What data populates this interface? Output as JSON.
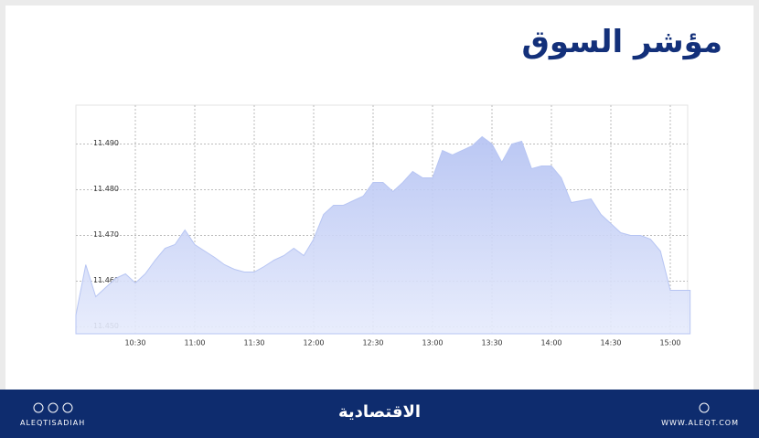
{
  "title": "مؤشر السوق",
  "footer": {
    "handle": "ALEQTISADIAH",
    "brand": "الاقتصادية",
    "site": "WWW.ALEQT.COM"
  },
  "chart_data": {
    "type": "area",
    "color": "#b7c5f3",
    "grid": true,
    "categories": [
      null,
      null,
      null,
      null,
      null,
      null,
      "10:30",
      null,
      null,
      null,
      null,
      null,
      "11:00",
      null,
      null,
      null,
      null,
      null,
      "11:30",
      null,
      null,
      null,
      null,
      null,
      "12:00",
      null,
      null,
      null,
      null,
      null,
      "12:30",
      null,
      null,
      null,
      null,
      null,
      "13:00",
      null,
      null,
      null,
      null,
      null,
      "13:30",
      null,
      null,
      null,
      null,
      null,
      "14:00",
      null,
      null,
      null,
      null,
      null,
      "14:30",
      null,
      null,
      null,
      null,
      null,
      "15:00",
      null,
      null
    ],
    "values": [
      11.4526,
      11.4636,
      11.4566,
      11.4586,
      11.4606,
      11.4616,
      11.4596,
      11.4616,
      11.4646,
      11.4672,
      11.468,
      11.4712,
      11.468,
      11.4666,
      11.4652,
      11.4636,
      11.4626,
      11.462,
      11.462,
      11.4632,
      11.4646,
      11.4656,
      11.4672,
      11.4656,
      11.4692,
      11.4746,
      11.4766,
      11.4766,
      11.4776,
      11.4786,
      11.4816,
      11.4816,
      11.4796,
      11.4816,
      11.484,
      11.4826,
      11.4826,
      11.4886,
      11.4876,
      11.4886,
      11.4896,
      11.4916,
      11.49,
      11.486,
      11.49,
      11.4906,
      11.4846,
      11.4852,
      11.4852,
      11.4826,
      11.4772,
      11.4776,
      11.478,
      11.4746,
      11.4726,
      11.4706,
      11.47,
      11.47,
      11.4692,
      11.4666,
      11.458,
      11.458,
      11.458
    ],
    "ylim": [
      11.4485,
      11.4985
    ],
    "yticks": [
      {
        "value": 11.45,
        "label": "11.450"
      },
      {
        "value": 11.46,
        "label": "11.460"
      },
      {
        "value": 11.47,
        "label": "11.470"
      },
      {
        "value": 11.48,
        "label": "11.480"
      },
      {
        "value": 11.49,
        "label": "11.490"
      }
    ]
  }
}
